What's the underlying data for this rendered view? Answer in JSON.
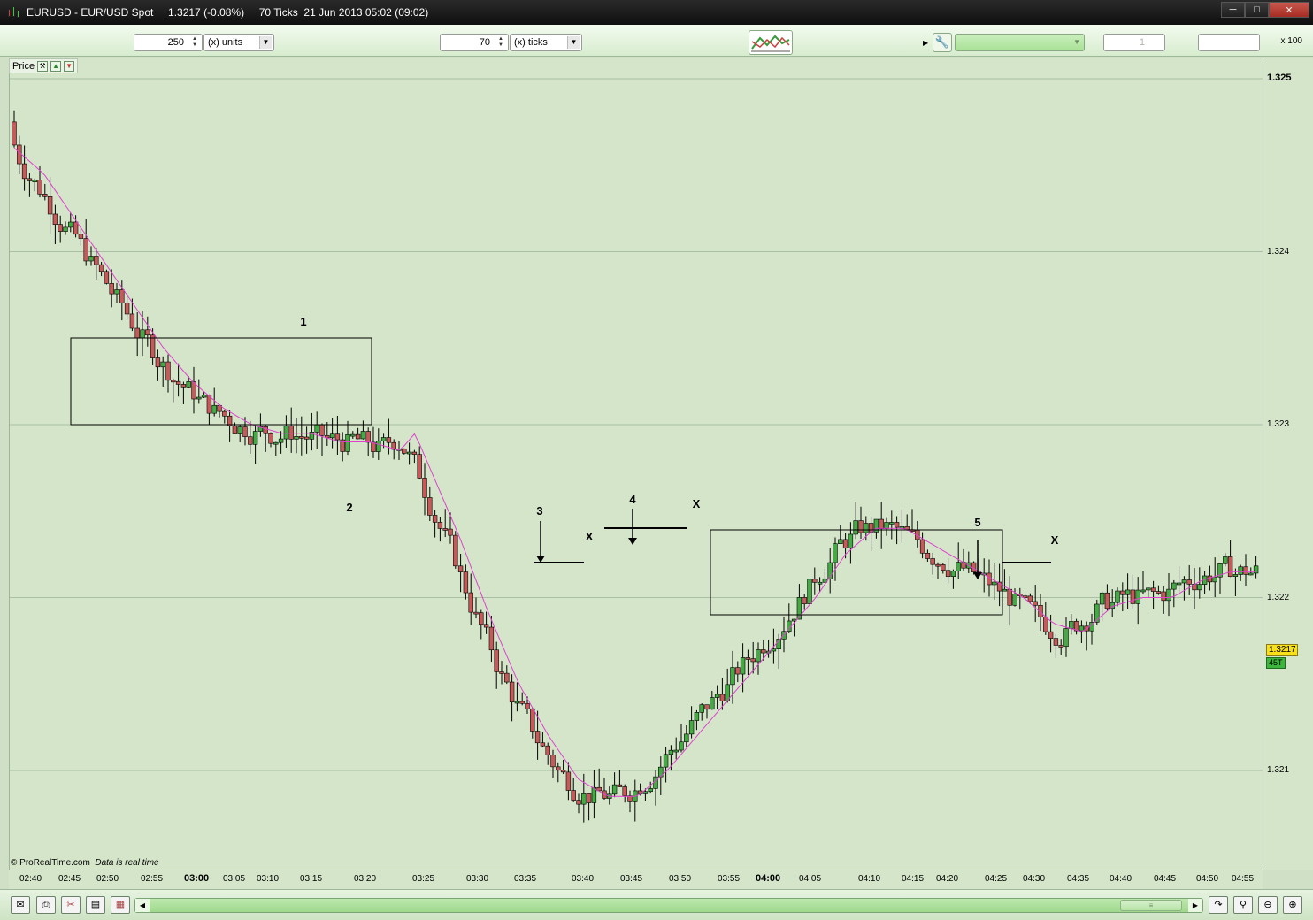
{
  "window": {
    "title": "EURUSD - EUR/USD Spot     1.3217 (-0.08%)     70 Ticks  21 Jun 2013 05:02 (09:02)",
    "minimize_icon": "minimize-icon",
    "maximize_icon": "maximize-icon",
    "close_icon": "close-icon"
  },
  "toolbar": {
    "units_value": "250",
    "units_label": "(x) units",
    "ticks_value": "70",
    "ticks_label": "(x) ticks",
    "side_value": "1",
    "multiplier": "x 100"
  },
  "price_panel": {
    "label": "Price",
    "price_labels": [
      "1.325",
      "1.324",
      "1.323",
      "1.322",
      "1.321"
    ],
    "last_price": "1.3217",
    "tick_count": "45T"
  },
  "footer": {
    "source": "© ProRealTime.com",
    "status": "Data is real time"
  },
  "time_axis": {
    "labels": [
      "02:40",
      "02:45",
      "02:50",
      "02:55",
      "03:00",
      "03:05",
      "03:10",
      "03:15",
      "03:20",
      "03:25",
      "03:30",
      "03:35",
      "03:40",
      "03:45",
      "03:50",
      "03:55",
      "04:00",
      "04:05",
      "04:10",
      "04:15",
      "04:20",
      "04:25",
      "04:30",
      "04:35",
      "04:40",
      "04:45",
      "04:50",
      "04:55"
    ],
    "bold_labels": [
      "03:00",
      "04:00"
    ]
  },
  "annotations": {
    "labels": [
      "1",
      "2",
      "3",
      "4",
      "5",
      "X",
      "X",
      "X",
      "X"
    ]
  },
  "colors": {
    "background": "#d4e5c9",
    "bull_candle": "#44aa44",
    "bear_candle": "#c65a5a",
    "moving_average": "#e040d0",
    "last_price_badge": "#f8e01a",
    "tick_badge": "#3db63d"
  },
  "chart_data": {
    "type": "candlestick",
    "instrument": "EURUSD",
    "y_range": [
      1.3205,
      1.3255
    ],
    "price_ticks": [
      1.325,
      1.324,
      1.323,
      1.322,
      1.321
    ],
    "last_price": 1.3217,
    "grid": true,
    "series": [
      {
        "name": "",
        "path_points": [
          [
            0,
            1.3246
          ],
          [
            10,
            1.32445
          ],
          [
            20,
            1.3242
          ],
          [
            30,
            1.32395
          ],
          [
            40,
            1.3237
          ],
          [
            50,
            1.32345
          ],
          [
            60,
            1.32325
          ],
          [
            70,
            1.3231
          ],
          [
            80,
            1.323
          ],
          [
            90,
            1.32295
          ],
          [
            100,
            1.32295
          ],
          [
            110,
            1.3229
          ],
          [
            120,
            1.3229
          ],
          [
            130,
            1.32285
          ],
          [
            135,
            1.32295
          ],
          [
            140,
            1.32275
          ],
          [
            150,
            1.32235
          ],
          [
            160,
            1.3219
          ],
          [
            170,
            1.3215
          ],
          [
            180,
            1.3212
          ],
          [
            190,
            1.32095
          ],
          [
            200,
            1.32085
          ],
          [
            210,
            1.32085
          ],
          [
            220,
            1.321
          ],
          [
            230,
            1.3212
          ],
          [
            240,
            1.3214
          ],
          [
            250,
            1.3216
          ],
          [
            260,
            1.3218
          ],
          [
            270,
            1.322
          ],
          [
            280,
            1.32225
          ],
          [
            290,
            1.3224
          ],
          [
            300,
            1.3224
          ],
          [
            310,
            1.3223
          ],
          [
            320,
            1.3222
          ],
          [
            330,
            1.3221
          ],
          [
            340,
            1.322
          ],
          [
            350,
            1.32185
          ],
          [
            360,
            1.3218
          ],
          [
            370,
            1.32195
          ],
          [
            380,
            1.322
          ],
          [
            390,
            1.322
          ],
          [
            400,
            1.3221
          ],
          [
            410,
            1.32215
          ],
          [
            420,
            1.32215
          ]
        ]
      }
    ]
  }
}
